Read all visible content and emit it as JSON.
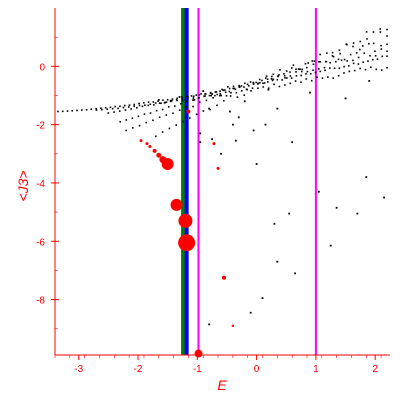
{
  "chart_data": {
    "type": "scatter",
    "title": "",
    "xlabel": "E",
    "ylabel": "<J3>",
    "xlim": [
      -3.4,
      2.25
    ],
    "ylim": [
      -9.9,
      2.0
    ],
    "x_ticks": [
      -3,
      -2,
      -1,
      0,
      1,
      2
    ],
    "y_ticks": [
      0,
      -2,
      -4,
      -6,
      -8
    ],
    "grid": false,
    "colors": {
      "axes": "#ff0000",
      "black_points": "#000000",
      "red_points": "#ff0000",
      "vline_green": "#008000",
      "vline_blue": "#0000ff",
      "vline_magenta": "#ff00ff"
    },
    "vertical_lines": [
      {
        "x": -1.24,
        "color": "#008000"
      },
      {
        "x": -1.18,
        "color": "#0000ff"
      },
      {
        "x": -0.98,
        "color": "#ff00ff"
      },
      {
        "x": 1.0,
        "color": "#ff00ff"
      }
    ],
    "black_branches": [
      {
        "x_start": -3.35,
        "x_end": 2.2,
        "y_start": -1.55,
        "y_end": 0.35,
        "n": 70,
        "curve": 1.4,
        "jitter": 0.05
      },
      {
        "x_start": -2.7,
        "x_end": 2.2,
        "y_start": -1.5,
        "y_end": 0.0,
        "n": 55,
        "curve": 1.2,
        "jitter": 0.1
      },
      {
        "x_start": -2.5,
        "x_end": 2.2,
        "y_start": -1.6,
        "y_end": 0.55,
        "n": 50,
        "curve": 1.1,
        "jitter": 0.12
      },
      {
        "x_start": -2.3,
        "x_end": 2.2,
        "y_start": -1.9,
        "y_end": 0.8,
        "n": 45,
        "curve": 1.0,
        "jitter": 0.18
      },
      {
        "x_start": -2.2,
        "x_end": 2.2,
        "y_start": -2.2,
        "y_end": 1.1,
        "n": 40,
        "curve": 1.0,
        "jitter": 0.25
      },
      {
        "x_start": -1.7,
        "x_end": 2.2,
        "y_start": -2.4,
        "y_end": 1.2,
        "n": 35,
        "curve": 0.9,
        "jitter": 0.3
      }
    ],
    "black_points": [
      [
        -1.65,
        -1.15
      ],
      [
        -1.55,
        -1.25
      ],
      [
        -1.45,
        -1.2
      ],
      [
        -1.3,
        -1.05
      ],
      [
        -1.05,
        -1.15
      ],
      [
        -0.9,
        -0.85
      ],
      [
        -0.75,
        -0.95
      ],
      [
        -0.6,
        -1.0
      ],
      [
        -0.8,
        -1.45
      ],
      [
        -0.45,
        -1.55
      ],
      [
        -0.3,
        -1.75
      ],
      [
        -0.95,
        -2.3
      ],
      [
        -0.75,
        -2.5
      ],
      [
        -0.35,
        -2.55
      ],
      [
        -0.05,
        -2.2
      ],
      [
        0.15,
        -2.0
      ],
      [
        0.35,
        -1.45
      ],
      [
        -0.95,
        -2.6
      ],
      [
        -0.6,
        -3.0
      ],
      [
        0.0,
        -3.35
      ],
      [
        1.05,
        -4.3
      ],
      [
        0.55,
        -5.05
      ],
      [
        1.25,
        -6.15
      ],
      [
        1.35,
        -4.85
      ],
      [
        1.7,
        -5.05
      ],
      [
        1.85,
        -3.8
      ],
      [
        2.15,
        -4.5
      ],
      [
        0.3,
        -5.4
      ],
      [
        0.65,
        -7.1
      ],
      [
        0.35,
        -6.7
      ],
      [
        0.1,
        -7.95
      ],
      [
        -0.1,
        -8.45
      ],
      [
        -0.8,
        -8.85
      ],
      [
        -0.4,
        -2.0
      ],
      [
        0.6,
        -2.6
      ],
      [
        1.5,
        -1.1
      ],
      [
        0.9,
        -0.9
      ],
      [
        0.2,
        -0.8
      ],
      [
        -0.2,
        -1.2
      ],
      [
        1.9,
        -0.5
      ]
    ],
    "red_points": [
      [
        -1.95,
        -2.55,
        1.5
      ],
      [
        -1.85,
        -2.65,
        1.5
      ],
      [
        -1.8,
        -2.75,
        1.5
      ],
      [
        -1.72,
        -2.9,
        2
      ],
      [
        -1.65,
        -3.05,
        2.5
      ],
      [
        -1.58,
        -3.2,
        3.5
      ],
      [
        -1.5,
        -3.35,
        6
      ],
      [
        -1.35,
        -4.75,
        6
      ],
      [
        -1.2,
        -5.3,
        7
      ],
      [
        -1.18,
        -6.05,
        8.5
      ],
      [
        -1.15,
        -1.55,
        2
      ],
      [
        -0.72,
        -2.65,
        1.5
      ],
      [
        -0.65,
        -3.5,
        1.5
      ],
      [
        -0.55,
        -7.25,
        2
      ],
      [
        -0.4,
        -8.9,
        1.2
      ],
      [
        -0.98,
        -9.85,
        4
      ]
    ]
  }
}
